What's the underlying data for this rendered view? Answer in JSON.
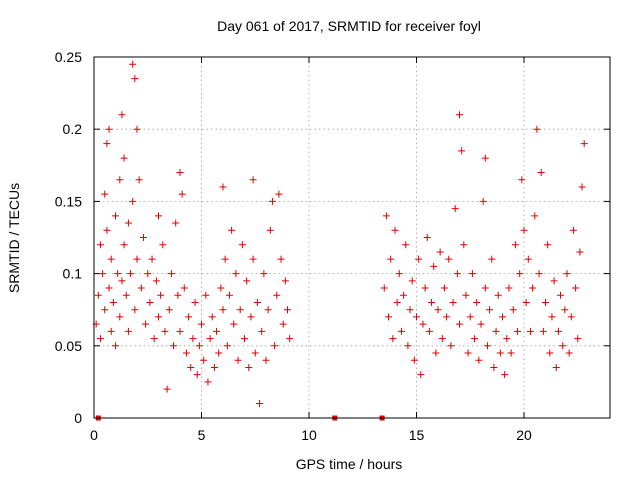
{
  "chart_data": {
    "type": "scatter",
    "title": "Day 061 of 2017, SRMTID for receiver foyl",
    "xlabel": "GPS time / hours",
    "ylabel": "SRMTID / TECUs",
    "xlim": [
      0,
      24
    ],
    "ylim": [
      0,
      0.25
    ],
    "x_ticks": [
      0,
      5,
      10,
      15,
      20
    ],
    "y_ticks": [
      0,
      0.05,
      0.1,
      0.15,
      0.2,
      0.25
    ],
    "x_tick_labels": [
      "0",
      "5",
      "10",
      "15",
      "20"
    ],
    "y_tick_labels": [
      "0",
      "0.05",
      "0.1",
      "0.15",
      "0.2",
      "0.25"
    ],
    "grid": true,
    "marker": "plus",
    "series_color": "#e00000",
    "zero_markers_x": [
      0.2,
      11.2,
      13.4
    ],
    "points": [
      [
        0.1,
        0.065
      ],
      [
        0.2,
        0.085
      ],
      [
        0.3,
        0.12
      ],
      [
        0.3,
        0.055
      ],
      [
        0.4,
        0.1
      ],
      [
        0.5,
        0.155
      ],
      [
        0.5,
        0.075
      ],
      [
        0.6,
        0.19
      ],
      [
        0.6,
        0.13
      ],
      [
        0.7,
        0.2
      ],
      [
        0.7,
        0.09
      ],
      [
        0.8,
        0.11
      ],
      [
        0.8,
        0.06
      ],
      [
        0.9,
        0.08
      ],
      [
        1.0,
        0.14
      ],
      [
        1.0,
        0.05
      ],
      [
        1.1,
        0.1
      ],
      [
        1.2,
        0.165
      ],
      [
        1.2,
        0.07
      ],
      [
        1.3,
        0.21
      ],
      [
        1.3,
        0.095
      ],
      [
        1.4,
        0.18
      ],
      [
        1.4,
        0.12
      ],
      [
        1.5,
        0.085
      ],
      [
        1.6,
        0.135
      ],
      [
        1.6,
        0.06
      ],
      [
        1.7,
        0.1
      ],
      [
        1.8,
        0.245
      ],
      [
        1.8,
        0.15
      ],
      [
        1.9,
        0.235
      ],
      [
        1.9,
        0.075
      ],
      [
        2.0,
        0.2
      ],
      [
        2.0,
        0.11
      ],
      [
        2.1,
        0.165
      ],
      [
        2.2,
        0.09
      ],
      [
        2.3,
        0.125
      ],
      [
        2.4,
        0.065
      ],
      [
        2.5,
        0.1
      ],
      [
        2.6,
        0.08
      ],
      [
        2.7,
        0.11
      ],
      [
        2.8,
        0.055
      ],
      [
        2.9,
        0.095
      ],
      [
        3.0,
        0.14
      ],
      [
        3.0,
        0.07
      ],
      [
        3.1,
        0.085
      ],
      [
        3.2,
        0.12
      ],
      [
        3.3,
        0.06
      ],
      [
        3.4,
        0.02
      ],
      [
        3.5,
        0.075
      ],
      [
        3.6,
        0.1
      ],
      [
        3.7,
        0.05
      ],
      [
        3.8,
        0.135
      ],
      [
        3.9,
        0.085
      ],
      [
        4.0,
        0.17
      ],
      [
        4.0,
        0.06
      ],
      [
        4.1,
        0.155
      ],
      [
        4.2,
        0.09
      ],
      [
        4.3,
        0.045
      ],
      [
        4.4,
        0.07
      ],
      [
        4.5,
        0.035
      ],
      [
        4.6,
        0.055
      ],
      [
        4.7,
        0.08
      ],
      [
        4.8,
        0.03
      ],
      [
        4.9,
        0.05
      ],
      [
        5.0,
        0.065
      ],
      [
        5.1,
        0.04
      ],
      [
        5.2,
        0.085
      ],
      [
        5.3,
        0.025
      ],
      [
        5.4,
        0.055
      ],
      [
        5.5,
        0.07
      ],
      [
        5.6,
        0.035
      ],
      [
        5.7,
        0.06
      ],
      [
        5.8,
        0.045
      ],
      [
        5.9,
        0.09
      ],
      [
        6.0,
        0.16
      ],
      [
        6.0,
        0.075
      ],
      [
        6.1,
        0.11
      ],
      [
        6.2,
        0.05
      ],
      [
        6.3,
        0.085
      ],
      [
        6.4,
        0.13
      ],
      [
        6.5,
        0.065
      ],
      [
        6.6,
        0.1
      ],
      [
        6.7,
        0.04
      ],
      [
        6.8,
        0.075
      ],
      [
        6.9,
        0.12
      ],
      [
        7.0,
        0.055
      ],
      [
        7.1,
        0.095
      ],
      [
        7.2,
        0.035
      ],
      [
        7.3,
        0.07
      ],
      [
        7.4,
        0.165
      ],
      [
        7.4,
        0.11
      ],
      [
        7.5,
        0.045
      ],
      [
        7.6,
        0.08
      ],
      [
        7.7,
        0.01
      ],
      [
        7.8,
        0.06
      ],
      [
        7.9,
        0.1
      ],
      [
        8.0,
        0.04
      ],
      [
        8.1,
        0.075
      ],
      [
        8.2,
        0.13
      ],
      [
        8.3,
        0.15
      ],
      [
        8.4,
        0.05
      ],
      [
        8.5,
        0.085
      ],
      [
        8.6,
        0.155
      ],
      [
        8.7,
        0.11
      ],
      [
        8.8,
        0.065
      ],
      [
        8.9,
        0.095
      ],
      [
        9.0,
        0.075
      ],
      [
        9.1,
        0.055
      ],
      [
        13.5,
        0.09
      ],
      [
        13.6,
        0.14
      ],
      [
        13.7,
        0.07
      ],
      [
        13.8,
        0.11
      ],
      [
        13.9,
        0.055
      ],
      [
        14.0,
        0.13
      ],
      [
        14.1,
        0.08
      ],
      [
        14.2,
        0.1
      ],
      [
        14.3,
        0.06
      ],
      [
        14.4,
        0.085
      ],
      [
        14.5,
        0.12
      ],
      [
        14.6,
        0.05
      ],
      [
        14.7,
        0.075
      ],
      [
        14.8,
        0.095
      ],
      [
        14.9,
        0.04
      ],
      [
        15.0,
        0.07
      ],
      [
        15.1,
        0.11
      ],
      [
        15.2,
        0.03
      ],
      [
        15.3,
        0.065
      ],
      [
        15.4,
        0.09
      ],
      [
        15.5,
        0.125
      ],
      [
        15.6,
        0.06
      ],
      [
        15.7,
        0.08
      ],
      [
        15.8,
        0.105
      ],
      [
        15.9,
        0.045
      ],
      [
        16.0,
        0.075
      ],
      [
        16.1,
        0.115
      ],
      [
        16.2,
        0.055
      ],
      [
        16.3,
        0.09
      ],
      [
        16.4,
        0.07
      ],
      [
        16.5,
        0.11
      ],
      [
        16.6,
        0.05
      ],
      [
        16.7,
        0.08
      ],
      [
        16.8,
        0.145
      ],
      [
        16.9,
        0.1
      ],
      [
        17.0,
        0.21
      ],
      [
        17.0,
        0.065
      ],
      [
        17.1,
        0.185
      ],
      [
        17.2,
        0.12
      ],
      [
        17.3,
        0.085
      ],
      [
        17.4,
        0.045
      ],
      [
        17.5,
        0.07
      ],
      [
        17.6,
        0.1
      ],
      [
        17.7,
        0.055
      ],
      [
        17.8,
        0.08
      ],
      [
        17.9,
        0.04
      ],
      [
        18.0,
        0.065
      ],
      [
        18.1,
        0.15
      ],
      [
        18.2,
        0.18
      ],
      [
        18.2,
        0.09
      ],
      [
        18.3,
        0.05
      ],
      [
        18.4,
        0.075
      ],
      [
        18.5,
        0.11
      ],
      [
        18.6,
        0.035
      ],
      [
        18.7,
        0.06
      ],
      [
        18.8,
        0.085
      ],
      [
        18.9,
        0.045
      ],
      [
        19.0,
        0.07
      ],
      [
        19.1,
        0.03
      ],
      [
        19.2,
        0.055
      ],
      [
        19.3,
        0.09
      ],
      [
        19.4,
        0.045
      ],
      [
        19.5,
        0.075
      ],
      [
        19.6,
        0.12
      ],
      [
        19.7,
        0.06
      ],
      [
        19.8,
        0.1
      ],
      [
        19.9,
        0.165
      ],
      [
        20.0,
        0.13
      ],
      [
        20.1,
        0.08
      ],
      [
        20.2,
        0.11
      ],
      [
        20.3,
        0.06
      ],
      [
        20.4,
        0.09
      ],
      [
        20.5,
        0.14
      ],
      [
        20.6,
        0.2
      ],
      [
        20.7,
        0.1
      ],
      [
        20.8,
        0.17
      ],
      [
        20.9,
        0.06
      ],
      [
        21.0,
        0.08
      ],
      [
        21.1,
        0.12
      ],
      [
        21.2,
        0.045
      ],
      [
        21.3,
        0.07
      ],
      [
        21.4,
        0.095
      ],
      [
        21.5,
        0.035
      ],
      [
        21.6,
        0.06
      ],
      [
        21.7,
        0.085
      ],
      [
        21.8,
        0.05
      ],
      [
        21.9,
        0.075
      ],
      [
        22.0,
        0.1
      ],
      [
        22.1,
        0.045
      ],
      [
        22.2,
        0.07
      ],
      [
        22.3,
        0.13
      ],
      [
        22.4,
        0.09
      ],
      [
        22.5,
        0.055
      ],
      [
        22.6,
        0.115
      ],
      [
        22.7,
        0.16
      ],
      [
        22.8,
        0.19
      ]
    ]
  }
}
